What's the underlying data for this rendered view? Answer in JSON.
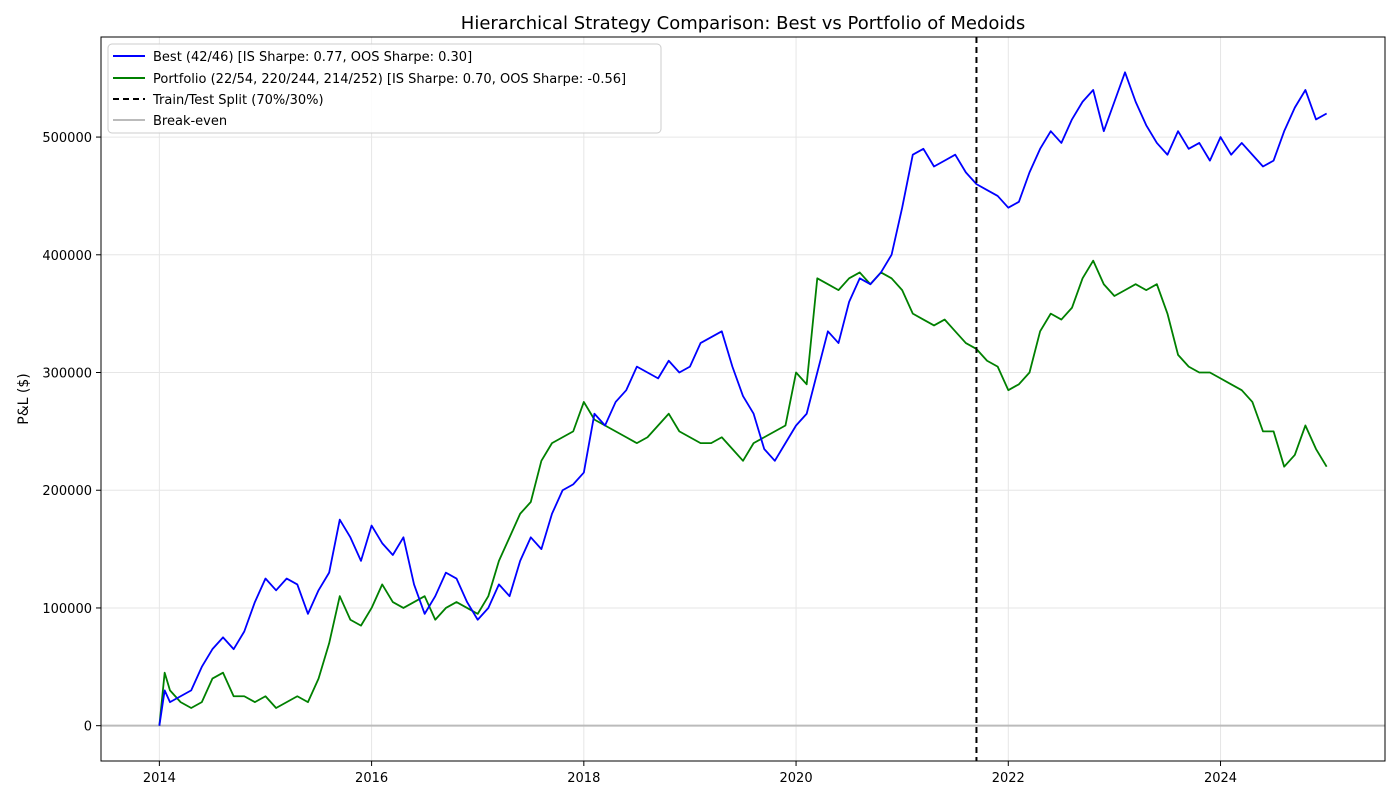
{
  "chart_data": {
    "type": "line",
    "title": "Hierarchical Strategy Comparison: Best vs Portfolio of Medoids",
    "xlabel": "",
    "ylabel": "P&L ($)",
    "x_ticks": [
      "2014",
      "2016",
      "2018",
      "2020",
      "2022",
      "2024"
    ],
    "y_ticks": [
      "0",
      "100000",
      "200000",
      "300000",
      "400000",
      "500000"
    ],
    "xlim": [
      2013.45,
      2025.55
    ],
    "ylim": [
      -30000,
      585000
    ],
    "grid": true,
    "legend_position": "top-left",
    "split_x": 2021.7,
    "breakeven_y": 0,
    "series": [
      {
        "name": "Best (42/46) [IS Sharpe: 0.77, OOS Sharpe: 0.30]",
        "color": "#0000ff",
        "x": [
          2014.0,
          2014.05,
          2014.1,
          2014.2,
          2014.3,
          2014.4,
          2014.5,
          2014.6,
          2014.7,
          2014.8,
          2014.9,
          2015.0,
          2015.1,
          2015.2,
          2015.3,
          2015.4,
          2015.5,
          2015.6,
          2015.7,
          2015.8,
          2015.9,
          2016.0,
          2016.1,
          2016.2,
          2016.3,
          2016.4,
          2016.5,
          2016.6,
          2016.7,
          2016.8,
          2016.9,
          2017.0,
          2017.1,
          2017.2,
          2017.3,
          2017.4,
          2017.5,
          2017.6,
          2017.7,
          2017.8,
          2017.9,
          2018.0,
          2018.1,
          2018.2,
          2018.3,
          2018.4,
          2018.5,
          2018.6,
          2018.7,
          2018.8,
          2018.9,
          2019.0,
          2019.1,
          2019.2,
          2019.3,
          2019.4,
          2019.5,
          2019.6,
          2019.7,
          2019.8,
          2019.9,
          2020.0,
          2020.1,
          2020.2,
          2020.3,
          2020.4,
          2020.5,
          2020.6,
          2020.7,
          2020.8,
          2020.9,
          2021.0,
          2021.1,
          2021.2,
          2021.3,
          2021.4,
          2021.5,
          2021.6,
          2021.7,
          2021.8,
          2021.9,
          2022.0,
          2022.1,
          2022.2,
          2022.3,
          2022.4,
          2022.5,
          2022.6,
          2022.7,
          2022.8,
          2022.9,
          2023.0,
          2023.1,
          2023.2,
          2023.3,
          2023.4,
          2023.5,
          2023.6,
          2023.7,
          2023.8,
          2023.9,
          2024.0,
          2024.1,
          2024.2,
          2024.3,
          2024.4,
          2024.5,
          2024.6,
          2024.7,
          2024.8,
          2024.9,
          2025.0
        ],
        "y": [
          0,
          30000,
          20000,
          25000,
          30000,
          50000,
          65000,
          75000,
          65000,
          80000,
          105000,
          125000,
          115000,
          125000,
          120000,
          95000,
          115000,
          130000,
          175000,
          160000,
          140000,
          170000,
          155000,
          145000,
          160000,
          120000,
          95000,
          110000,
          130000,
          125000,
          105000,
          90000,
          100000,
          120000,
          110000,
          140000,
          160000,
          150000,
          180000,
          200000,
          205000,
          215000,
          265000,
          255000,
          275000,
          285000,
          305000,
          300000,
          295000,
          310000,
          300000,
          305000,
          325000,
          330000,
          335000,
          305000,
          280000,
          265000,
          235000,
          225000,
          240000,
          255000,
          265000,
          300000,
          335000,
          325000,
          360000,
          380000,
          375000,
          385000,
          400000,
          440000,
          485000,
          490000,
          475000,
          480000,
          485000,
          470000,
          460000,
          455000,
          450000,
          440000,
          445000,
          470000,
          490000,
          505000,
          495000,
          515000,
          530000,
          540000,
          505000,
          530000,
          555000,
          530000,
          510000,
          495000,
          485000,
          505000,
          490000,
          495000,
          480000,
          500000,
          485000,
          495000,
          485000,
          475000,
          480000,
          505000,
          525000,
          540000,
          515000,
          520000
        ]
      },
      {
        "name": "Portfolio (22/54, 220/244, 214/252) [IS Sharpe: 0.70, OOS Sharpe: -0.56]",
        "color": "#008000",
        "x": [
          2014.0,
          2014.05,
          2014.1,
          2014.2,
          2014.3,
          2014.4,
          2014.5,
          2014.6,
          2014.7,
          2014.8,
          2014.9,
          2015.0,
          2015.1,
          2015.2,
          2015.3,
          2015.4,
          2015.5,
          2015.6,
          2015.7,
          2015.8,
          2015.9,
          2016.0,
          2016.1,
          2016.2,
          2016.3,
          2016.4,
          2016.5,
          2016.6,
          2016.7,
          2016.8,
          2016.9,
          2017.0,
          2017.1,
          2017.2,
          2017.3,
          2017.4,
          2017.5,
          2017.6,
          2017.7,
          2017.8,
          2017.9,
          2018.0,
          2018.1,
          2018.2,
          2018.3,
          2018.4,
          2018.5,
          2018.6,
          2018.7,
          2018.8,
          2018.9,
          2019.0,
          2019.1,
          2019.2,
          2019.3,
          2019.4,
          2019.5,
          2019.6,
          2019.7,
          2019.8,
          2019.9,
          2020.0,
          2020.1,
          2020.2,
          2020.3,
          2020.4,
          2020.5,
          2020.6,
          2020.7,
          2020.8,
          2020.9,
          2021.0,
          2021.1,
          2021.2,
          2021.3,
          2021.4,
          2021.5,
          2021.6,
          2021.7,
          2021.8,
          2021.9,
          2022.0,
          2022.1,
          2022.2,
          2022.3,
          2022.4,
          2022.5,
          2022.6,
          2022.7,
          2022.8,
          2022.9,
          2023.0,
          2023.1,
          2023.2,
          2023.3,
          2023.4,
          2023.5,
          2023.6,
          2023.7,
          2023.8,
          2023.9,
          2024.0,
          2024.1,
          2024.2,
          2024.3,
          2024.4,
          2024.5,
          2024.6,
          2024.7,
          2024.8,
          2024.9,
          2025.0
        ],
        "y": [
          0,
          45000,
          30000,
          20000,
          15000,
          20000,
          40000,
          45000,
          25000,
          25000,
          20000,
          25000,
          15000,
          20000,
          25000,
          20000,
          40000,
          70000,
          110000,
          90000,
          85000,
          100000,
          120000,
          105000,
          100000,
          105000,
          110000,
          90000,
          100000,
          105000,
          100000,
          95000,
          110000,
          140000,
          160000,
          180000,
          190000,
          225000,
          240000,
          245000,
          250000,
          275000,
          260000,
          255000,
          250000,
          245000,
          240000,
          245000,
          255000,
          265000,
          250000,
          245000,
          240000,
          240000,
          245000,
          235000,
          225000,
          240000,
          245000,
          250000,
          255000,
          300000,
          290000,
          380000,
          375000,
          370000,
          380000,
          385000,
          375000,
          385000,
          380000,
          370000,
          350000,
          345000,
          340000,
          345000,
          335000,
          325000,
          320000,
          310000,
          305000,
          285000,
          290000,
          300000,
          335000,
          350000,
          345000,
          355000,
          380000,
          395000,
          375000,
          365000,
          370000,
          375000,
          370000,
          375000,
          350000,
          315000,
          305000,
          300000,
          300000,
          295000,
          290000,
          285000,
          275000,
          250000,
          250000,
          220000,
          230000,
          255000,
          235000,
          220000
        ]
      },
      {
        "name": "Train/Test Split (70%/30%)",
        "color": "#000000"
      },
      {
        "name": "Break-even",
        "color": "#bbbbbb"
      }
    ]
  }
}
